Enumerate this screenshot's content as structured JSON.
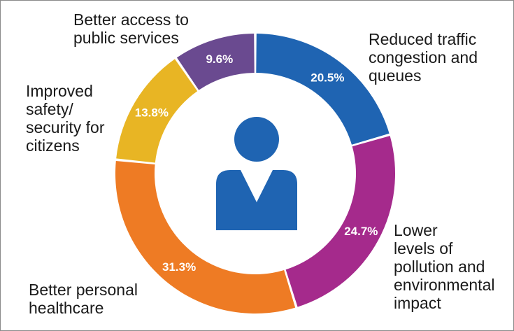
{
  "chart_data": {
    "type": "pie",
    "variant": "donut",
    "categories": [
      "Reduced traffic congestion and queues",
      "Lower levels of pollution and environmental impact",
      "Better personal healthcare",
      "Improved safety/ security for citizens",
      "Better access to public services"
    ],
    "values": [
      20.5,
      24.7,
      31.3,
      13.8,
      9.6
    ],
    "value_labels": [
      "20.5%",
      "24.7%",
      "31.3%",
      "13.8%",
      "9.6%"
    ],
    "colors": [
      "#1f64b2",
      "#a52a8c",
      "#ee7b24",
      "#e8b524",
      "#6a4a90"
    ],
    "label_lines": [
      [
        "Reduced traffic",
        "congestion and",
        "queues"
      ],
      [
        "Lower",
        "levels of",
        "pollution and",
        "environmental",
        "impact"
      ],
      [
        "Better personal",
        "healthcare"
      ],
      [
        "Improved",
        "safety/",
        "security for",
        "citizens"
      ],
      [
        "Better access to",
        "public services"
      ]
    ],
    "center_icon": "person-icon",
    "icon_color": "#1f64b2"
  }
}
